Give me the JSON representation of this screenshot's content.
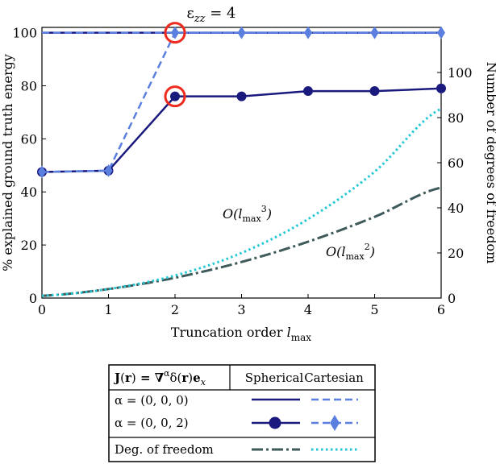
{
  "chart_data": {
    "type": "line",
    "title": {
      "base": "ε",
      "sub": "zz",
      "rest": " = 4"
    },
    "x": [
      0,
      1,
      2,
      3,
      4,
      5,
      6
    ],
    "xlim": [
      0,
      6
    ],
    "ylim": [
      0,
      102
    ],
    "y2lim": [
      0,
      120
    ],
    "xticks": [
      0,
      1,
      2,
      3,
      4,
      5,
      6
    ],
    "yticks": [
      0,
      20,
      40,
      60,
      80,
      100
    ],
    "y2ticks": [
      0,
      20,
      40,
      60,
      80,
      100
    ],
    "xlabel": {
      "text": "Truncation order ",
      "var": "l",
      "sub": "max"
    },
    "ylabel": "% explained ground truth energy",
    "y2label": "Number of degrees of freedom",
    "series": [
      {
        "name": "α = (0, 0, 0) Spherical",
        "axis": "left",
        "color": "#1a1a7e",
        "style": "solid",
        "marker": "none",
        "values": [
          100,
          100,
          100,
          100,
          100,
          100,
          100
        ]
      },
      {
        "name": "α = (0, 0, 0) Cartesian",
        "axis": "left",
        "color": "#5b7fdf",
        "style": "dashed",
        "marker": "none",
        "values": [
          100,
          100,
          100,
          100,
          100,
          100,
          100
        ]
      },
      {
        "name": "α = (0, 0, 2) Spherical",
        "axis": "left",
        "color": "#1a1a7e",
        "style": "solid",
        "marker": "circle",
        "values": [
          47.5,
          48,
          76,
          76,
          78,
          78,
          79
        ]
      },
      {
        "name": "α = (0, 0, 2) Cartesian",
        "axis": "left",
        "color": "#5b7fdf",
        "style": "dashed",
        "marker": "diamond",
        "values": [
          47.5,
          48,
          100,
          100,
          100,
          100,
          100
        ]
      },
      {
        "name": "Deg. of freedom Spherical",
        "axis": "right",
        "color": "#3f5a5a",
        "style": "dashdot",
        "marker": "none",
        "values": [
          1,
          4,
          9,
          16,
          25,
          36,
          49
        ]
      },
      {
        "name": "Deg. of freedom Cartesian",
        "axis": "right",
        "color": "#22c7d4",
        "style": "dotted",
        "marker": "none",
        "values": [
          1,
          4,
          10,
          20,
          35,
          56,
          84
        ]
      }
    ],
    "highlights": [
      {
        "x": 2,
        "y": 100,
        "color": "#ee2b1e"
      },
      {
        "x": 2,
        "y": 76,
        "color": "#ee2b1e"
      }
    ],
    "annotations": [
      {
        "label": "O(lmax3)",
        "pre": "O(",
        "var": "l",
        "sub": "max",
        "sup": "3",
        "post": ")"
      },
      {
        "label": "O(lmax2)",
        "pre": "O(",
        "var": "l",
        "sub": "max",
        "sup": "2",
        "post": ")"
      }
    ],
    "legend": {
      "header": {
        "J": "J",
        "r": "r",
        "eq": " = ∇",
        "alpha": "α",
        "delta": "δ(",
        "r2": "r",
        "close": ")",
        "e": "e",
        "esub": "x"
      },
      "col1": "Spherical",
      "col2": "Cartesian",
      "rows": [
        {
          "label": "α = (0, 0, 0)"
        },
        {
          "label": "α = (0, 0, 2)"
        },
        {
          "label": "Deg. of freedom"
        }
      ]
    }
  }
}
